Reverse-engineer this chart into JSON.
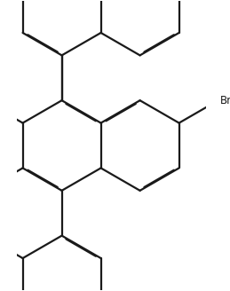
{
  "bg_color": "#ffffff",
  "line_color": "#1a1a1a",
  "line_width": 1.6,
  "dbo": 0.018,
  "shorten": 0.12,
  "br_label": "Br",
  "br_fontsize": 8.5,
  "fig_width": 2.59,
  "fig_height": 3.28,
  "dpi": 100,
  "xlim": [
    -1.0,
    3.2
  ],
  "ylim": [
    -3.2,
    3.2
  ]
}
